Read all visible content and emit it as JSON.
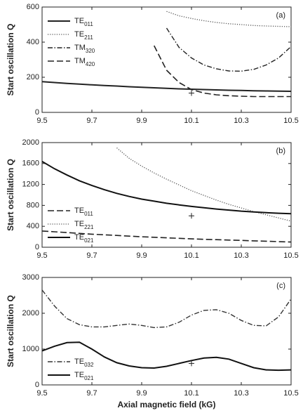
{
  "chart_data": [
    {
      "type": "line",
      "panel_label": "(a)",
      "y_label": "Start oscillation Q",
      "legend": "upper left",
      "x": [
        9.5,
        9.55,
        9.6,
        9.65,
        9.7,
        9.75,
        9.8,
        9.85,
        9.9,
        9.95,
        10.0,
        10.05,
        10.1,
        10.15,
        10.2,
        10.25,
        10.3,
        10.35,
        10.4,
        10.45,
        10.5
      ],
      "xlim": [
        9.5,
        10.5
      ],
      "xticks": [
        9.5,
        9.7,
        9.9,
        10.1,
        10.3,
        10.5
      ],
      "ylim": [
        0,
        600
      ],
      "yticks": [
        0,
        200,
        400,
        600
      ],
      "series": [
        {
          "name": "TE011",
          "color": "#222222",
          "style": "solid",
          "values": [
            175,
            170,
            165,
            161,
            157,
            153,
            150,
            146,
            143,
            140,
            137,
            134,
            132,
            130,
            128,
            126,
            125,
            123,
            122,
            121,
            120
          ]
        },
        {
          "name": "TE211",
          "color": "#555555",
          "style": "dotted",
          "values": [
            null,
            null,
            null,
            null,
            null,
            null,
            null,
            null,
            null,
            null,
            575,
            550,
            535,
            522,
            512,
            505,
            500,
            495,
            492,
            490,
            488
          ]
        },
        {
          "name": "TM320",
          "color": "#222222",
          "style": "dashdot",
          "values": [
            null,
            null,
            null,
            null,
            null,
            null,
            null,
            null,
            null,
            null,
            480,
            370,
            310,
            270,
            248,
            236,
            235,
            245,
            270,
            310,
            375
          ]
        },
        {
          "name": "TM420",
          "color": "#222222",
          "style": "dashed",
          "values": [
            null,
            null,
            null,
            null,
            null,
            null,
            null,
            null,
            null,
            380,
            240,
            170,
            130,
            110,
            100,
            95,
            92,
            90,
            90,
            90,
            90
          ]
        }
      ],
      "points": {
        "x": [
          10.1
        ],
        "y": [
          110
        ]
      }
    },
    {
      "type": "line",
      "panel_label": "(b)",
      "y_label": "Start oscillation Q",
      "legend": "lower left",
      "x": [
        9.5,
        9.55,
        9.6,
        9.65,
        9.7,
        9.75,
        9.8,
        9.85,
        9.9,
        9.95,
        10.0,
        10.05,
        10.1,
        10.15,
        10.2,
        10.25,
        10.3,
        10.35,
        10.4,
        10.45,
        10.5
      ],
      "xlim": [
        9.5,
        10.5
      ],
      "xticks": [
        9.5,
        9.7,
        9.9,
        10.1,
        10.3,
        10.5
      ],
      "ylim": [
        0,
        2000
      ],
      "yticks": [
        0,
        400,
        800,
        1200,
        1600,
        2000
      ],
      "series": [
        {
          "name": "TE011",
          "color": "#222222",
          "style": "dashed",
          "values": [
            310,
            295,
            280,
            265,
            250,
            237,
            225,
            212,
            200,
            190,
            180,
            170,
            160,
            152,
            145,
            137,
            130,
            122,
            115,
            107,
            100
          ]
        },
        {
          "name": "TE221",
          "color": "#555555",
          "style": "dotted",
          "values": [
            null,
            null,
            null,
            null,
            null,
            null,
            1900,
            1700,
            1550,
            1420,
            1300,
            1190,
            1080,
            990,
            900,
            820,
            750,
            680,
            620,
            560,
            500
          ]
        },
        {
          "name": "TE021",
          "color": "#111111",
          "style": "solid",
          "values": [
            1640,
            1500,
            1380,
            1270,
            1180,
            1100,
            1030,
            970,
            920,
            880,
            840,
            810,
            780,
            755,
            730,
            710,
            690,
            675,
            660,
            650,
            640
          ]
        }
      ],
      "points": {
        "x": [
          10.1
        ],
        "y": [
          600
        ]
      }
    },
    {
      "type": "line",
      "panel_label": "(c)",
      "y_label": "Start oscillation Q",
      "x_label": "Axial magnetic field (kG)",
      "legend": "lower left",
      "x": [
        9.5,
        9.55,
        9.6,
        9.65,
        9.7,
        9.75,
        9.8,
        9.85,
        9.9,
        9.95,
        10.0,
        10.05,
        10.1,
        10.15,
        10.2,
        10.25,
        10.3,
        10.35,
        10.4,
        10.45,
        10.5
      ],
      "xlim": [
        9.5,
        10.5
      ],
      "xticks": [
        9.5,
        9.7,
        9.9,
        10.1,
        10.3,
        10.5
      ],
      "ylim": [
        0,
        3000
      ],
      "yticks": [
        0,
        1000,
        2000,
        3000
      ],
      "series": [
        {
          "name": "TE032",
          "color": "#333333",
          "style": "dashdot",
          "values": [
            2650,
            2200,
            1850,
            1680,
            1620,
            1620,
            1660,
            1700,
            1660,
            1600,
            1620,
            1750,
            1950,
            2080,
            2100,
            2000,
            1800,
            1660,
            1650,
            1900,
            2400
          ]
        },
        {
          "name": "TE021",
          "color": "#111111",
          "style": "solid",
          "values": [
            950,
            1080,
            1180,
            1190,
            1000,
            780,
            620,
            530,
            480,
            470,
            520,
            600,
            680,
            750,
            770,
            720,
            600,
            480,
            420,
            410,
            420
          ]
        }
      ],
      "points": {
        "x": [
          10.1
        ],
        "y": [
          600
        ]
      }
    }
  ]
}
